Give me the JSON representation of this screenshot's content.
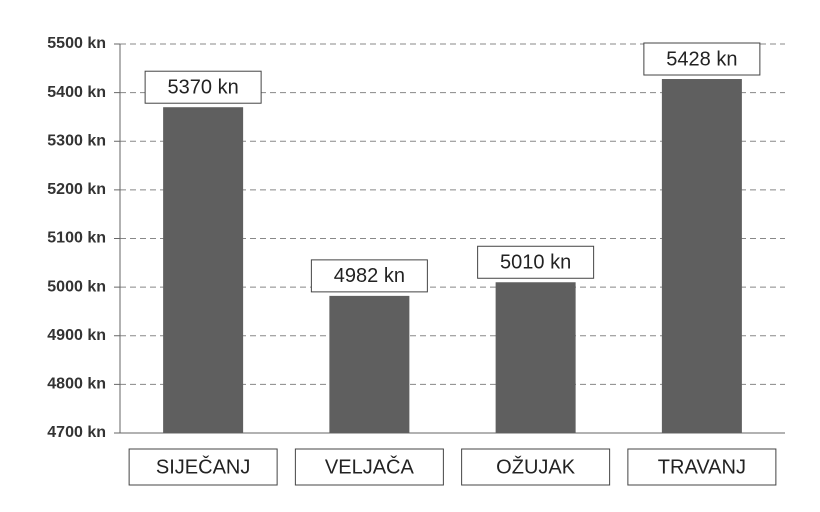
{
  "chart_data": {
    "type": "bar",
    "categories": [
      "SIJEČANJ",
      "VELJAČA",
      "OŽUJAK",
      "TRAVANJ"
    ],
    "values": [
      5370,
      4982,
      5010,
      5428
    ],
    "value_labels": [
      "5370 kn",
      "4982 kn",
      "5010 kn",
      "5428 kn"
    ],
    "color": "#5f5f5f",
    "ylim": [
      4700,
      5500
    ],
    "yticks": [
      {
        "value": 4700,
        "label": "4700 kn"
      },
      {
        "value": 4800,
        "label": "4800 kn"
      },
      {
        "value": 4900,
        "label": "4900 kn"
      },
      {
        "value": 5000,
        "label": "5000 kn"
      },
      {
        "value": 5100,
        "label": "5100 kn"
      },
      {
        "value": 5200,
        "label": "5200 kn"
      },
      {
        "value": 5300,
        "label": "5300 kn"
      },
      {
        "value": 5400,
        "label": "5400 kn"
      },
      {
        "value": 5500,
        "label": "5500 kn"
      }
    ],
    "grid": true
  }
}
